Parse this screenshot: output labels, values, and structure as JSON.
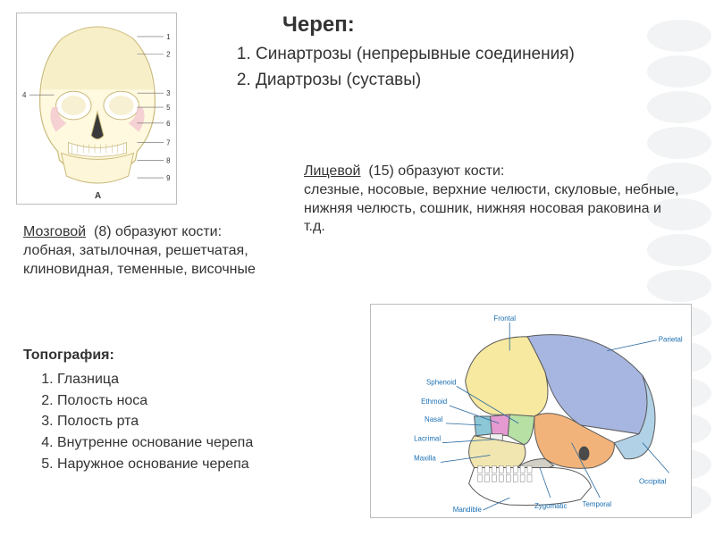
{
  "title": {
    "main": "Череп:",
    "items": [
      "Синартрозы (непрерывные соединения)",
      "Диартрозы (суставы)"
    ]
  },
  "neurocranium": {
    "lead": "Мозговой",
    "count": "(8) образуют кости:",
    "text": "лобная, затылочная, решетчатая, клиновидная, теменные, височные"
  },
  "facial": {
    "lead": "Лицевой",
    "count": "(15) образуют кости:",
    "text": "слезные, носовые, верхние челюсти, скуловые, небные, нижняя челюсть, сошник, нижняя носовая раковина и т.д."
  },
  "topo": {
    "title": "Топография:",
    "items": [
      "Глазница",
      "Полость носа",
      "Полость рта",
      "Внутренне основание черепа",
      "Наружное основание черепа"
    ]
  },
  "front_skull": {
    "outline_color": "#c9b97a",
    "face_color": "#fff9e0",
    "shade_color": "#f2e8b8",
    "callouts_right": [
      "1",
      "2",
      "3",
      "5",
      "6",
      "7",
      "8",
      "9"
    ],
    "callouts_left": [
      "4"
    ],
    "bottom_label": "A"
  },
  "side_skull": {
    "labels": {
      "frontal": "Frontal",
      "parietal": "Parietal",
      "sphenoid": "Sphenoid",
      "ethmoid": "Ethmoid",
      "nasal": "Nasal",
      "lacrimal": "Lacrimal",
      "maxilla": "Maxilla",
      "mandible": "Mandible",
      "temporal": "Temporal",
      "zygomatic": "Zygomatic",
      "occipital": "Occipital"
    },
    "colors": {
      "frontal": "#f7e9a0",
      "parietal": "#a7b6e0",
      "sphenoid": "#b7e0a5",
      "ethmoid": "#e59bd1",
      "nasal": "#8bc7d6",
      "lacrimal": "#f0f0f0",
      "maxilla": "#f2e6b0",
      "mandible": "#ffffff",
      "temporal": "#f2b37a",
      "zygomatic": "#d1cfc6",
      "occipital": "#b1d2e6",
      "outline": "#5a5a5a"
    }
  }
}
